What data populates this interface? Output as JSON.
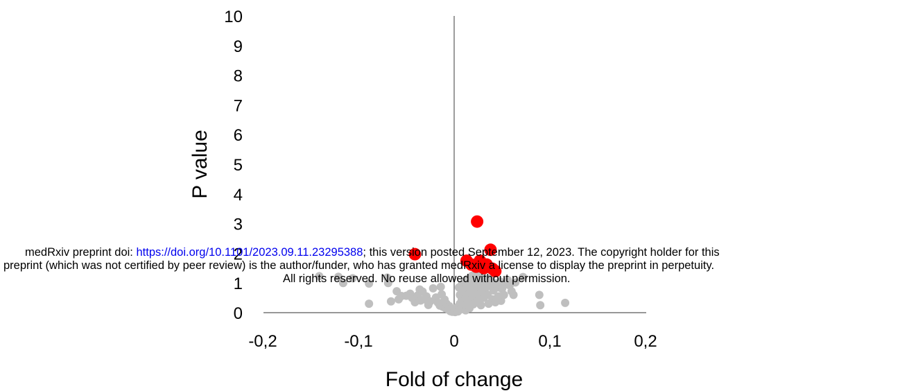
{
  "chart_data": {
    "type": "scatter",
    "title": "",
    "xlabel": "Fold of change",
    "ylabel": "P value",
    "xlim": [
      -0.2,
      0.2
    ],
    "ylim": [
      0,
      10
    ],
    "x_ticks": [
      "-0,2",
      "-0,1",
      "0",
      "0,1",
      "0,2"
    ],
    "y_ticks": [
      "0",
      "1",
      "2",
      "3",
      "4",
      "5",
      "6",
      "7",
      "8",
      "9",
      "10"
    ],
    "grid": false,
    "legend": "none",
    "series": [
      {
        "color": "#bfbfbf",
        "points": [
          [
            -0.141,
            1.23
          ],
          [
            -0.121,
            1.21
          ],
          [
            -0.116,
            1.0
          ],
          [
            -0.106,
            1.16
          ],
          [
            -0.089,
            0.98
          ],
          [
            -0.089,
            0.3
          ],
          [
            -0.07,
            1.18
          ],
          [
            -0.069,
            1.0
          ],
          [
            -0.066,
            0.38
          ],
          [
            -0.06,
            0.72
          ],
          [
            -0.058,
            0.45
          ],
          [
            -0.055,
            0.56
          ],
          [
            -0.05,
            0.57
          ],
          [
            -0.046,
            0.64
          ],
          [
            -0.044,
            0.5
          ],
          [
            -0.041,
            0.35
          ],
          [
            -0.038,
            0.58
          ],
          [
            -0.036,
            0.78
          ],
          [
            -0.035,
            0.41
          ],
          [
            -0.033,
            0.71
          ],
          [
            -0.031,
            0.45
          ],
          [
            -0.029,
            0.55
          ],
          [
            -0.027,
            0.26
          ],
          [
            -0.025,
            0.38
          ],
          [
            -0.022,
            0.82
          ],
          [
            -0.019,
            0.51
          ],
          [
            -0.017,
            0.34
          ],
          [
            -0.015,
            0.24
          ],
          [
            -0.014,
            0.87
          ],
          [
            -0.013,
            0.62
          ],
          [
            -0.012,
            0.2
          ],
          [
            -0.01,
            0.44
          ],
          [
            -0.009,
            0.15
          ],
          [
            -0.008,
            0.3
          ],
          [
            -0.006,
            0.1
          ],
          [
            -0.005,
            0.22
          ],
          [
            -0.004,
            0.05
          ],
          [
            -0.003,
            0.14
          ],
          [
            -0.002,
            0.03
          ],
          [
            0.0,
            0.1
          ],
          [
            0.001,
            0.02
          ],
          [
            0.002,
            0.07
          ],
          [
            0.003,
            0.18
          ],
          [
            0.004,
            0.04
          ],
          [
            0.005,
            0.85
          ],
          [
            0.006,
            0.6
          ],
          [
            0.006,
            0.3
          ],
          [
            0.007,
            0.12
          ],
          [
            0.008,
            0.45
          ],
          [
            0.008,
            0.95
          ],
          [
            0.009,
            0.7
          ],
          [
            0.01,
            0.2
          ],
          [
            0.011,
            1.05
          ],
          [
            0.012,
            0.5
          ],
          [
            0.012,
            0.08
          ],
          [
            0.013,
            0.85
          ],
          [
            0.014,
            0.35
          ],
          [
            0.015,
            1.15
          ],
          [
            0.015,
            0.62
          ],
          [
            0.016,
            0.15
          ],
          [
            0.017,
            0.95
          ],
          [
            0.018,
            0.45
          ],
          [
            0.019,
            1.25
          ],
          [
            0.02,
            0.75
          ],
          [
            0.02,
            0.28
          ],
          [
            0.021,
            1.05
          ],
          [
            0.022,
            0.55
          ],
          [
            0.023,
            1.3
          ],
          [
            0.024,
            0.85
          ],
          [
            0.025,
            0.4
          ],
          [
            0.026,
            1.15
          ],
          [
            0.027,
            0.65
          ],
          [
            0.028,
            0.25
          ],
          [
            0.029,
            0.95
          ],
          [
            0.03,
            1.2
          ],
          [
            0.031,
            0.5
          ],
          [
            0.032,
            0.78
          ],
          [
            0.033,
            1.05
          ],
          [
            0.035,
            0.6
          ],
          [
            0.036,
            0.3
          ],
          [
            0.037,
            0.9
          ],
          [
            0.038,
            1.15
          ],
          [
            0.04,
            0.45
          ],
          [
            0.041,
            0.75
          ],
          [
            0.042,
            1.0
          ],
          [
            0.043,
            0.35
          ],
          [
            0.045,
            0.85
          ],
          [
            0.046,
            0.55
          ],
          [
            0.048,
            1.05
          ],
          [
            0.049,
            0.4
          ],
          [
            0.05,
            0.8
          ],
          [
            0.052,
            0.6
          ],
          [
            0.054,
            0.95
          ],
          [
            0.056,
            1.1
          ],
          [
            0.058,
            0.92
          ],
          [
            0.06,
            0.72
          ],
          [
            0.062,
            0.6
          ],
          [
            0.064,
            1.02
          ],
          [
            0.072,
            1.2
          ],
          [
            0.089,
            0.6
          ],
          [
            0.09,
            0.25
          ],
          [
            0.116,
            0.33
          ]
        ]
      },
      {
        "color": "#ff0000",
        "points": [
          [
            -0.041,
            1.97
          ],
          [
            0.024,
            3.07
          ],
          [
            0.013,
            1.75
          ],
          [
            0.018,
            1.62
          ],
          [
            0.023,
            1.55
          ],
          [
            0.027,
            1.75
          ],
          [
            0.031,
            1.5
          ],
          [
            0.034,
            1.62
          ],
          [
            0.038,
            2.12
          ],
          [
            0.04,
            1.48
          ],
          [
            0.043,
            1.4
          ]
        ]
      }
    ]
  },
  "notice": {
    "line1_prefix": "medRxiv preprint doi: ",
    "line1_link": "https://doi.org/10.1101/2023.09.11.23295388",
    "line1_suffix": "; this version posted September 12, 2023. The copyright holder for this",
    "line2": "preprint (which was not certified by peer review) is the author/funder, who has granted medRxiv a license to display the preprint in perpetuity.",
    "line3": "All rights reserved. No reuse allowed without permission."
  }
}
